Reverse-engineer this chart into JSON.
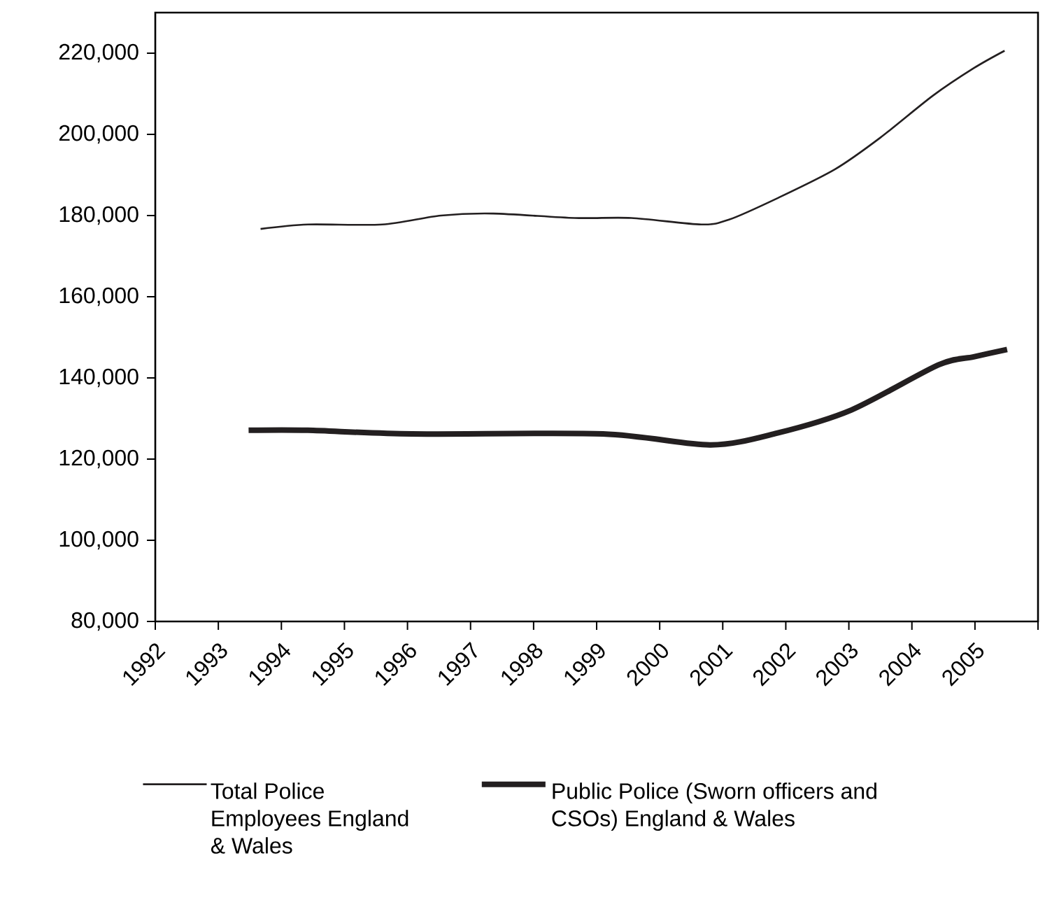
{
  "chart_data": {
    "type": "line",
    "xlim": [
      1992,
      2006
    ],
    "ylim": [
      80000,
      230000
    ],
    "xticks": [
      1992,
      1993,
      1994,
      1995,
      1996,
      1997,
      1998,
      1999,
      2000,
      2001,
      2002,
      2003,
      2004,
      2005,
      {
        "value": 2006,
        "label": null
      }
    ],
    "yticks": [
      {
        "value": 80000,
        "label": "80,000"
      },
      {
        "value": 100000,
        "label": "100,000"
      },
      {
        "value": 120000,
        "label": "120,000"
      },
      {
        "value": 140000,
        "label": "140,000"
      },
      {
        "value": 160000,
        "label": "160,000"
      },
      {
        "value": 180000,
        "label": "180,000"
      },
      {
        "value": 200000,
        "label": "200,000"
      },
      {
        "value": 220000,
        "label": "220,000"
      }
    ],
    "grid": false,
    "legend": "bottom",
    "marker": "none",
    "line_style": "solid",
    "series": [
      {
        "name": "Total Police Employees England & Wales",
        "color": "#231f20",
        "x": [
          1993.67,
          1994.42,
          1995.6,
          1996.53,
          1997.36,
          1998.65,
          1999.55,
          2000.66,
          2001.1,
          2001.87,
          2002.78,
          2003.5,
          2004.33,
          2004.98,
          2005.47
        ],
        "values": [
          176700,
          177800,
          177800,
          180000,
          180500,
          179400,
          179400,
          177800,
          179000,
          184300,
          191400,
          199200,
          209500,
          216300,
          220600
        ]
      },
      {
        "name": "Public Police (Sworn officers and CSOs) England & Wales",
        "color": "#231f20",
        "x": [
          1993.48,
          1994.42,
          1996.07,
          1999.1,
          2000.8,
          2001.86,
          2003.04,
          2004.42,
          2004.98,
          2005.51
        ],
        "values": [
          127100,
          127100,
          126200,
          126200,
          123500,
          126400,
          132100,
          143200,
          145200,
          147000
        ]
      }
    ]
  }
}
